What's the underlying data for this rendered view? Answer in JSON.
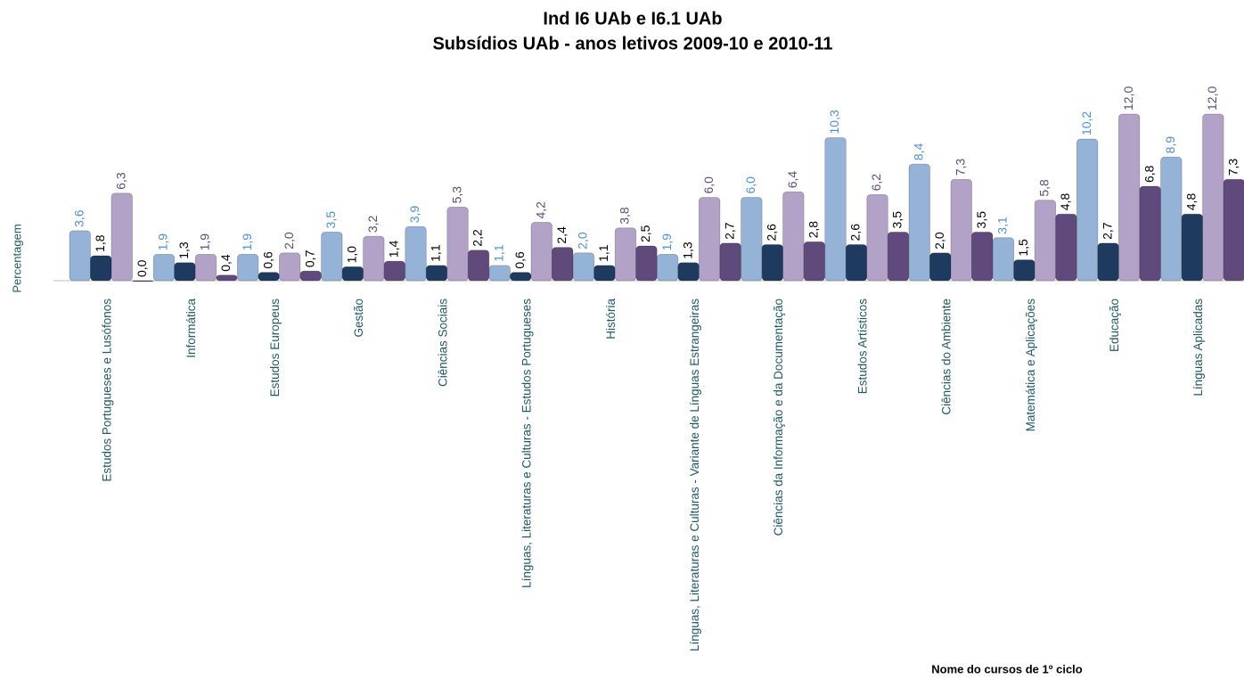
{
  "chart_data": {
    "type": "bar",
    "title": "Ind I6 UAb e I6.1 UAb",
    "subtitle": "Subsídios UAb - anos letivos 2009-10 e 2010-11",
    "y_label": "Percentagem",
    "x_label": "Nome do cursos de 1º ciclo",
    "categories": [
      "Estudos Portugueses e Lusófonos",
      "Informática",
      "Estudos Europeus",
      "Gestão",
      "Ciências Sociais",
      "Línguas, Literaturas e Culturas - Estudos Portugueses",
      "História",
      "Línguas, Literaturas e Culturas - Variante de Línguas Estrangeiras",
      "Ciências da Informação e da Documentação",
      "Estudos Artísticos",
      "Ciências do Ambiente",
      "Matemática e Aplicações",
      "Educação",
      "Línguas Aplicadas"
    ],
    "series": [
      {
        "color": "#95b3d7",
        "label_color": "#4f8fd6",
        "values": [
          3.6,
          1.9,
          1.9,
          3.5,
          3.9,
          1.1,
          2.0,
          1.9,
          6.0,
          10.3,
          8.4,
          3.1,
          10.2,
          8.9
        ],
        "value_labels": [
          "3,6",
          "1,9",
          "1,9",
          "3,5",
          "3,9",
          "1,1",
          "2,0",
          "1,9",
          "6,0",
          "10,3",
          "8,4",
          "3,1",
          "10,2",
          "8,9"
        ]
      },
      {
        "color": "#1f3a5f",
        "label_color": "#000000",
        "values": [
          1.8,
          1.3,
          0.6,
          1.0,
          1.1,
          0.6,
          1.1,
          1.3,
          2.6,
          2.6,
          2.0,
          1.5,
          2.7,
          4.8
        ],
        "value_labels": [
          "1,8",
          "1,3",
          "0,6",
          "1,0",
          "1,1",
          "0,6",
          "1,1",
          "1,3",
          "2,6",
          "2,6",
          "2,0",
          "1,5",
          "2,7",
          "4,8"
        ]
      },
      {
        "color": "#b3a2c7",
        "label_color": "#604a7b",
        "values": [
          6.3,
          1.9,
          2.0,
          3.2,
          5.3,
          4.2,
          3.8,
          6.0,
          6.4,
          6.2,
          7.3,
          5.8,
          12.0,
          12.0
        ],
        "value_labels": [
          "6,3",
          "1,9",
          "2,0",
          "3,2",
          "5,3",
          "4,2",
          "3,8",
          "6,0",
          "6,4",
          "6,2",
          "7,3",
          "5,8",
          "12,0",
          "12,0"
        ]
      },
      {
        "color": "#5f4a7b",
        "label_color": "#000000",
        "values": [
          0.0,
          0.4,
          0.7,
          1.4,
          2.2,
          2.4,
          2.5,
          2.7,
          2.8,
          3.5,
          3.5,
          4.8,
          6.8,
          7.3
        ],
        "value_labels": [
          "0,0",
          "0,4",
          "0,7",
          "1,4",
          "2,2",
          "2,4",
          "2,5",
          "2,7",
          "2,8",
          "3,5",
          "3,5",
          "4,8",
          "6,8",
          "7,3"
        ]
      }
    ],
    "ylim": [
      0,
      12
    ]
  }
}
